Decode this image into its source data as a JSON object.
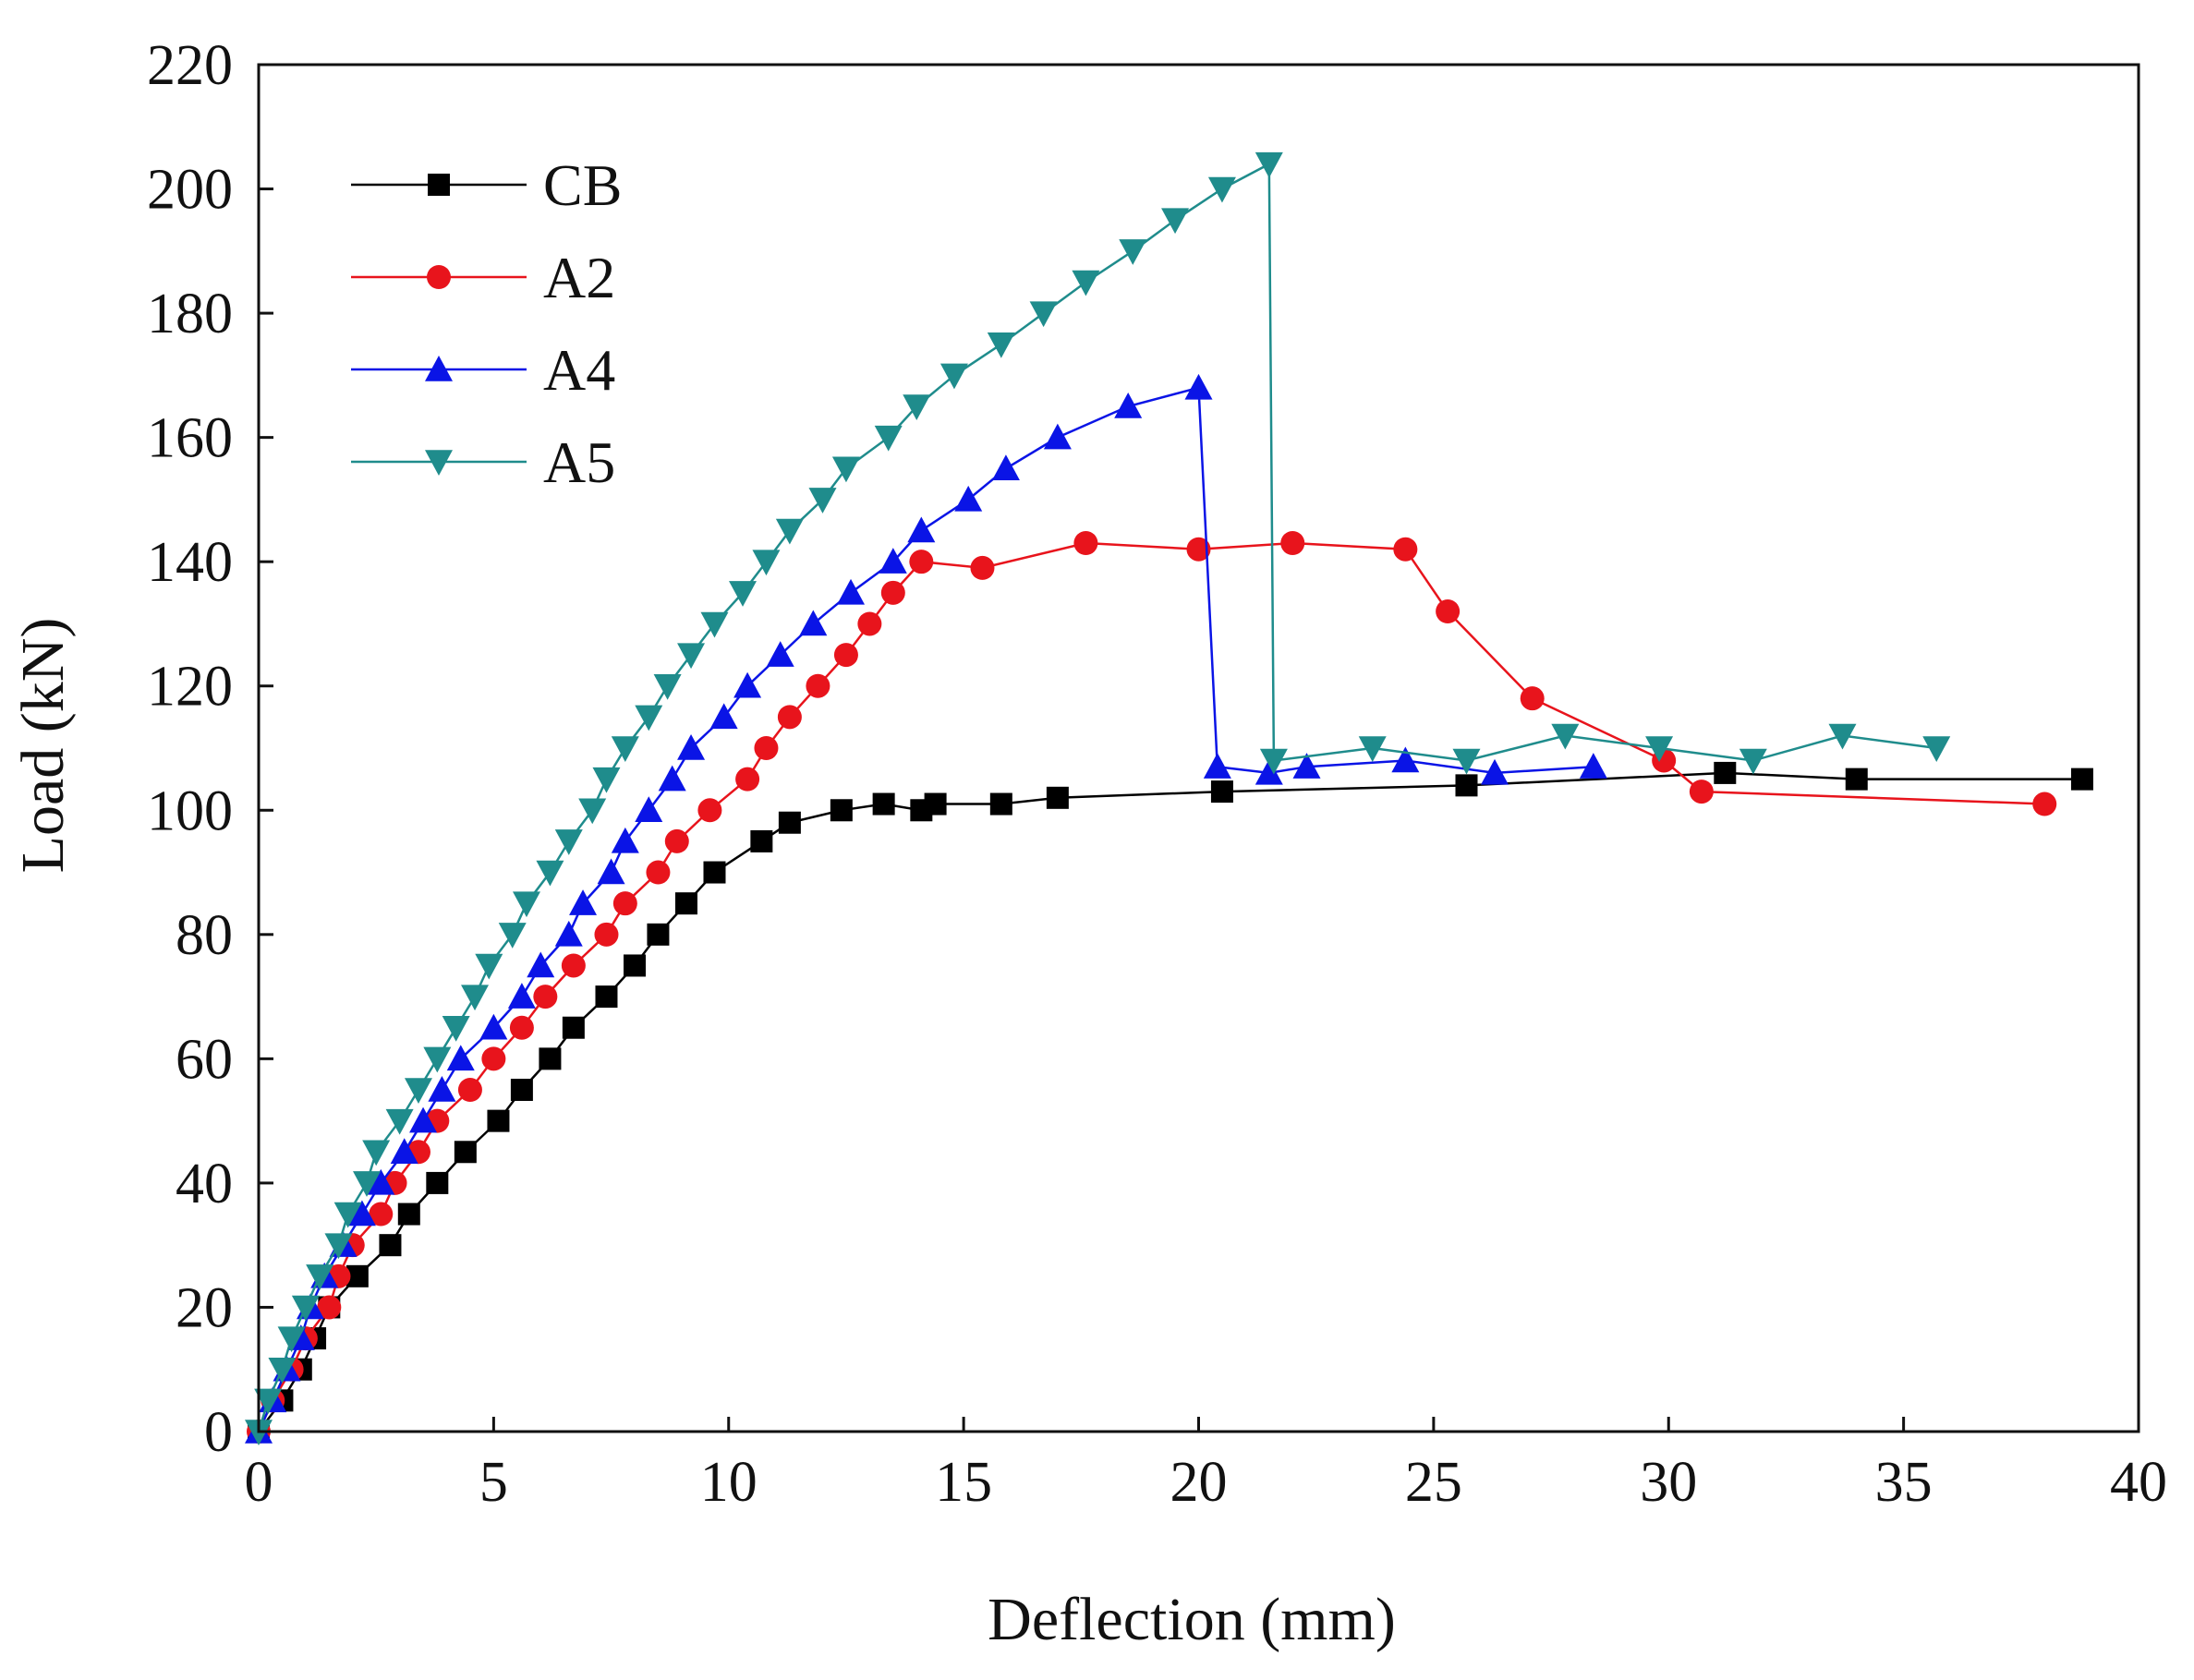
{
  "chart_data": {
    "type": "line",
    "title": "",
    "xlabel": "Deflection (mm)",
    "ylabel": "Load (kN)",
    "xlim": [
      0,
      40
    ],
    "ylim": [
      0,
      220
    ],
    "xticks": [
      0,
      5,
      10,
      15,
      20,
      25,
      30,
      35,
      40
    ],
    "yticks": [
      0,
      20,
      40,
      60,
      80,
      100,
      120,
      140,
      160,
      180,
      200,
      220
    ],
    "grid": false,
    "legend_position": "top-left",
    "series": [
      {
        "name": "CB",
        "color": "#000000",
        "marker": "square",
        "points": [
          [
            0,
            0
          ],
          [
            0.5,
            5
          ],
          [
            0.9,
            10
          ],
          [
            1.2,
            15
          ],
          [
            1.5,
            20
          ],
          [
            2.1,
            25
          ],
          [
            2.8,
            30
          ],
          [
            3.2,
            35
          ],
          [
            3.8,
            40
          ],
          [
            4.4,
            45
          ],
          [
            5.1,
            50
          ],
          [
            5.6,
            55
          ],
          [
            6.2,
            60
          ],
          [
            6.7,
            65
          ],
          [
            7.4,
            70
          ],
          [
            8.0,
            75
          ],
          [
            8.5,
            80
          ],
          [
            9.1,
            85
          ],
          [
            9.7,
            90
          ],
          [
            10.7,
            95
          ],
          [
            11.3,
            98
          ],
          [
            12.4,
            100
          ],
          [
            13.3,
            101
          ],
          [
            14.1,
            100
          ],
          [
            14.4,
            101
          ],
          [
            15.8,
            101
          ],
          [
            17.0,
            102
          ],
          [
            20.5,
            103
          ],
          [
            25.7,
            104
          ],
          [
            31.2,
            106
          ],
          [
            34.0,
            105
          ],
          [
            38.8,
            105
          ]
        ]
      },
      {
        "name": "A2",
        "color": "#e8141c",
        "marker": "circle",
        "points": [
          [
            0,
            0
          ],
          [
            0.3,
            5
          ],
          [
            0.7,
            10
          ],
          [
            1.0,
            15
          ],
          [
            1.5,
            20
          ],
          [
            1.7,
            25
          ],
          [
            2.0,
            30
          ],
          [
            2.6,
            35
          ],
          [
            2.9,
            40
          ],
          [
            3.4,
            45
          ],
          [
            3.8,
            50
          ],
          [
            4.5,
            55
          ],
          [
            5.0,
            60
          ],
          [
            5.6,
            65
          ],
          [
            6.1,
            70
          ],
          [
            6.7,
            75
          ],
          [
            7.4,
            80
          ],
          [
            7.8,
            85
          ],
          [
            8.5,
            90
          ],
          [
            8.9,
            95
          ],
          [
            9.6,
            100
          ],
          [
            10.4,
            105
          ],
          [
            10.8,
            110
          ],
          [
            11.3,
            115
          ],
          [
            11.9,
            120
          ],
          [
            12.5,
            125
          ],
          [
            13.0,
            130
          ],
          [
            13.5,
            135
          ],
          [
            14.1,
            140
          ],
          [
            15.4,
            139
          ],
          [
            17.6,
            143
          ],
          [
            20.0,
            142
          ],
          [
            22.0,
            143
          ],
          [
            24.4,
            142
          ],
          [
            25.3,
            132
          ],
          [
            27.1,
            118
          ],
          [
            29.9,
            108
          ],
          [
            30.7,
            103
          ],
          [
            38.0,
            101
          ]
        ]
      },
      {
        "name": "A4",
        "color": "#0a14e6",
        "marker": "triangle-up",
        "points": [
          [
            0,
            0
          ],
          [
            0.3,
            5
          ],
          [
            0.6,
            10
          ],
          [
            0.9,
            15
          ],
          [
            1.1,
            20
          ],
          [
            1.4,
            25
          ],
          [
            1.8,
            30
          ],
          [
            2.2,
            35
          ],
          [
            2.6,
            40
          ],
          [
            3.1,
            45
          ],
          [
            3.5,
            50
          ],
          [
            3.9,
            55
          ],
          [
            4.3,
            60
          ],
          [
            5.0,
            65
          ],
          [
            5.6,
            70
          ],
          [
            6.0,
            75
          ],
          [
            6.6,
            80
          ],
          [
            6.9,
            85
          ],
          [
            7.5,
            90
          ],
          [
            7.8,
            95
          ],
          [
            8.3,
            100
          ],
          [
            8.8,
            105
          ],
          [
            9.2,
            110
          ],
          [
            9.9,
            115
          ],
          [
            10.4,
            120
          ],
          [
            11.1,
            125
          ],
          [
            11.8,
            130
          ],
          [
            12.6,
            135
          ],
          [
            13.5,
            140
          ],
          [
            14.1,
            145
          ],
          [
            15.1,
            150
          ],
          [
            15.9,
            155
          ],
          [
            17.0,
            160
          ],
          [
            18.5,
            165
          ],
          [
            20.0,
            168
          ],
          [
            20.4,
            107
          ],
          [
            21.5,
            106
          ],
          [
            22.3,
            107
          ],
          [
            24.4,
            108
          ],
          [
            26.3,
            106
          ],
          [
            28.4,
            107
          ]
        ]
      },
      {
        "name": "A5",
        "color": "#1f8c8c",
        "marker": "triangle-down",
        "points": [
          [
            0,
            0
          ],
          [
            0.2,
            5
          ],
          [
            0.5,
            10
          ],
          [
            0.7,
            15
          ],
          [
            1.0,
            20
          ],
          [
            1.3,
            25
          ],
          [
            1.7,
            30
          ],
          [
            1.9,
            35
          ],
          [
            2.3,
            40
          ],
          [
            2.5,
            45
          ],
          [
            3.0,
            50
          ],
          [
            3.4,
            55
          ],
          [
            3.8,
            60
          ],
          [
            4.2,
            65
          ],
          [
            4.6,
            70
          ],
          [
            4.9,
            75
          ],
          [
            5.4,
            80
          ],
          [
            5.7,
            85
          ],
          [
            6.2,
            90
          ],
          [
            6.6,
            95
          ],
          [
            7.1,
            100
          ],
          [
            7.4,
            105
          ],
          [
            7.8,
            110
          ],
          [
            8.3,
            115
          ],
          [
            8.7,
            120
          ],
          [
            9.2,
            125
          ],
          [
            9.7,
            130
          ],
          [
            10.3,
            135
          ],
          [
            10.8,
            140
          ],
          [
            11.3,
            145
          ],
          [
            12.0,
            150
          ],
          [
            12.5,
            155
          ],
          [
            13.4,
            160
          ],
          [
            14.0,
            165
          ],
          [
            14.8,
            170
          ],
          [
            15.8,
            175
          ],
          [
            16.7,
            180
          ],
          [
            17.6,
            185
          ],
          [
            18.6,
            190
          ],
          [
            19.5,
            195
          ],
          [
            20.5,
            200
          ],
          [
            21.5,
            204
          ],
          [
            21.6,
            108
          ],
          [
            23.7,
            110
          ],
          [
            25.7,
            108
          ],
          [
            27.8,
            112
          ],
          [
            29.8,
            110
          ],
          [
            31.8,
            108
          ],
          [
            33.7,
            112
          ],
          [
            35.7,
            110
          ]
        ]
      }
    ]
  }
}
